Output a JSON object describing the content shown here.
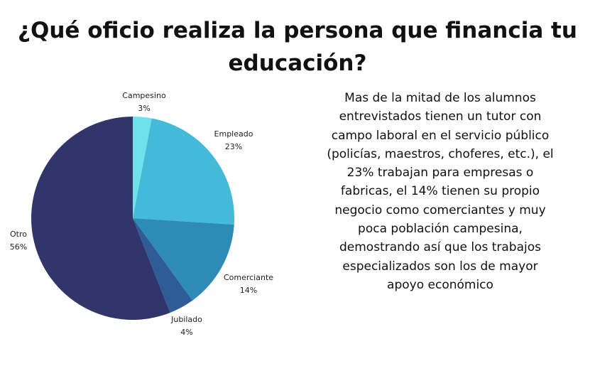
{
  "title": "¿Qué oficio realiza la persona que financia tu educación?",
  "description": "Mas de la mitad de los alumnos entrevistados tienen un tutor con campo laboral en el servicio público (policías, maestros, choferes, etc.), el 23%  trabajan para empresas o fabricas, el 14% tienen su propio negocio como comerciantes y muy poca población campesina, demostrando así que los trabajos especializados son los de mayor apoyo económico",
  "chart_data": {
    "type": "pie",
    "title": "¿Qué oficio realiza la persona que financia tu educación?",
    "unit": "%",
    "slices": [
      {
        "label": "Campesino",
        "value": 3,
        "value_label": "3%",
        "color": "#6ee1ea"
      },
      {
        "label": "Empleado",
        "value": 23,
        "value_label": "23%",
        "color": "#44b9d8"
      },
      {
        "label": "Comerciante",
        "value": 14,
        "value_label": "14%",
        "color": "#2d8bb8"
      },
      {
        "label": "Jubilado",
        "value": 4,
        "value_label": "4%",
        "color": "#2f5c96"
      },
      {
        "label": "Otro",
        "value": 56,
        "value_label": "56%",
        "color": "#30366a"
      }
    ]
  }
}
